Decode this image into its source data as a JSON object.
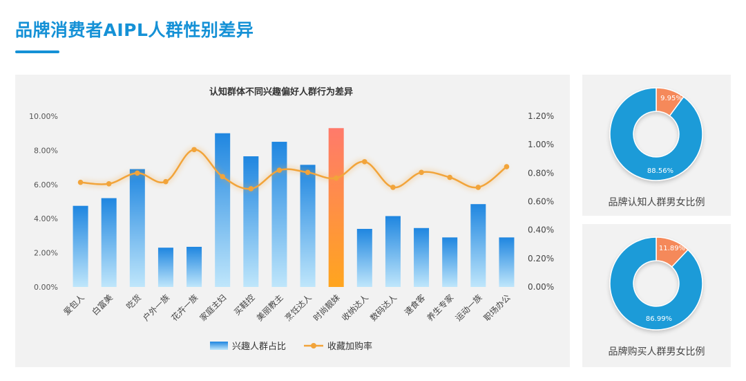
{
  "page": {
    "title": "品牌消费者AIPL人群性别差异"
  },
  "colors": {
    "accent": "#1591d6",
    "bar_blue_top": "#1f86e0",
    "bar_blue_bottom": "#bfe6fb",
    "bar_highlight_top": "#ff7a6b",
    "bar_highlight_bottom": "#ffa51f",
    "line_orange": "#f2a43a",
    "donut_male": "#1b9bd8",
    "donut_female": "#f5895a"
  },
  "chart_data": [
    {
      "type": "bar",
      "title": "认知群体不同兴趣偏好人群行为差异",
      "categories": [
        "爱包人",
        "白富美",
        "吃货",
        "户外一族",
        "花卉一族",
        "家庭主妇",
        "买鞋控",
        "美丽教主",
        "烹饪达人",
        "时尚靓妹",
        "收纳达人",
        "数码达人",
        "速食客",
        "养生专家",
        "运动一族",
        "职场办公"
      ],
      "series": [
        {
          "name": "兴趣人群占比",
          "axis": "left",
          "type": "bar",
          "values": [
            4.75,
            5.2,
            6.9,
            2.3,
            2.35,
            9.0,
            7.65,
            8.5,
            7.15,
            9.3,
            3.4,
            4.15,
            3.45,
            2.9,
            4.85,
            2.9
          ]
        },
        {
          "name": "收藏加购率",
          "axis": "right",
          "type": "line",
          "values": [
            0.735,
            0.725,
            0.8,
            0.74,
            0.965,
            0.775,
            0.69,
            0.82,
            0.805,
            0.765,
            0.88,
            0.7,
            0.805,
            0.77,
            0.7,
            0.845
          ]
        }
      ],
      "highlight_category": "时尚靓妹",
      "y_left": {
        "ylim": [
          0,
          10
        ],
        "ticks": [
          "0.00%",
          "2.00%",
          "4.00%",
          "6.00%",
          "8.00%",
          "10.00%"
        ]
      },
      "y_right": {
        "ylim": [
          0,
          1.2
        ],
        "ticks": [
          "0.00%",
          "0.20%",
          "0.40%",
          "0.60%",
          "0.80%",
          "1.00%",
          "1.20%"
        ]
      },
      "grid": false,
      "legend_position": "bottom"
    },
    {
      "type": "pie",
      "variant": "donut",
      "title": "品牌认知人群男女比例",
      "slices": [
        {
          "label": "88.56%",
          "value": 88.56,
          "color": "#1b9bd8"
        },
        {
          "label": "9.95%",
          "value": 9.95,
          "color": "#f5895a"
        }
      ]
    },
    {
      "type": "pie",
      "variant": "donut",
      "title": "品牌购买人群男女比例",
      "slices": [
        {
          "label": "86.99%",
          "value": 86.99,
          "color": "#1b9bd8"
        },
        {
          "label": "11.89%",
          "value": 11.89,
          "color": "#f5895a"
        }
      ]
    }
  ]
}
